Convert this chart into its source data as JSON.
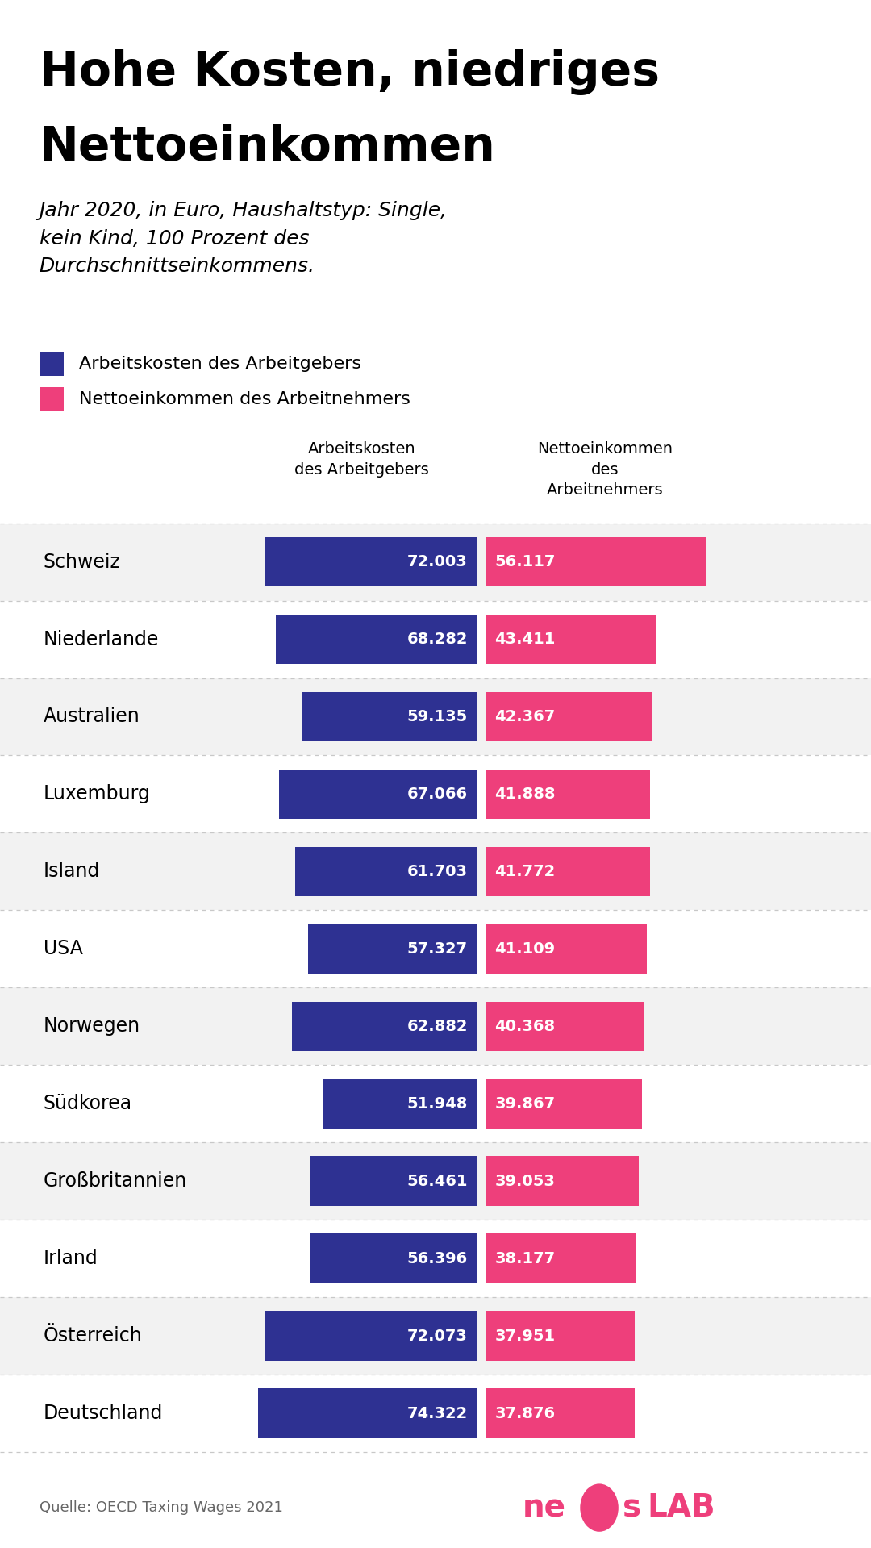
{
  "title_line1": "Hohe Kosten, niedriges",
  "title_line2": "Nettoeinkommen",
  "subtitle": "Jahr 2020, in Euro, Haushaltstyp: Single,\nkein Kind, 100 Prozent des\nDurchschnittseinkommens.",
  "legend1": "Arbeitskosten des Arbeitgebers",
  "legend2": "Nettoeinkommen des Arbeitnehmers",
  "col_header1": "Arbeitskosten\ndes Arbeitgebers",
  "col_header2": "Nettoeinkommen\ndes\nArbeitnehmers",
  "source": "Quelle: OECD Taxing Wages 2021",
  "countries": [
    "Schweiz",
    "Niederlande",
    "Australien",
    "Luxemburg",
    "Island",
    "USA",
    "Norwegen",
    "Südkorea",
    "Großbritannien",
    "Irland",
    "Österreich",
    "Deutschland"
  ],
  "arbeitskosten": [
    72003,
    68282,
    59135,
    67066,
    61703,
    57327,
    62882,
    51948,
    56461,
    56396,
    72073,
    74322
  ],
  "nettoeinkommen": [
    56117,
    43411,
    42367,
    41888,
    41772,
    41109,
    40368,
    39867,
    39053,
    38177,
    37951,
    37876
  ],
  "arbeitskosten_labels": [
    "72.003",
    "68.282",
    "59.135",
    "67.066",
    "61.703",
    "57.327",
    "62.882",
    "51.948",
    "56.461",
    "56.396",
    "72.073",
    "74.322"
  ],
  "nettoeinkommen_labels": [
    "56.117",
    "43.411",
    "42.367",
    "41.888",
    "41.772",
    "41.109",
    "40.368",
    "39.867",
    "39.053",
    "38.177",
    "37.951",
    "37.876"
  ],
  "blue_color": "#2e3192",
  "pink_color": "#ee3f7b",
  "bg_color": "#ffffff",
  "text_color": "#000000",
  "white_color": "#ffffff",
  "gray_row_color": "#f2f2f2",
  "separator_color": "#c8c8c8",
  "source_color": "#666666",
  "bar_max": 80000
}
